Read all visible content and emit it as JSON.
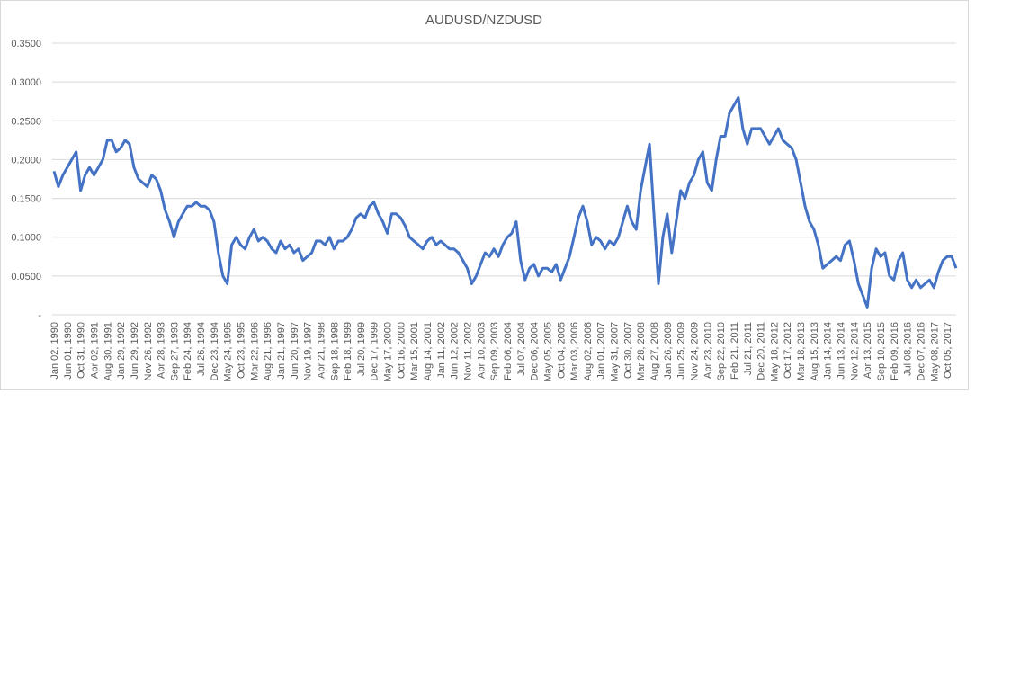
{
  "chart_data": {
    "type": "line",
    "title": "AUDUSD/NZDUSD",
    "categories": [
      "Jan 02, 1990",
      null,
      null,
      "Jun 01, 1990",
      null,
      null,
      "Oct 31, 1990",
      null,
      null,
      "Apr 02, 1991",
      null,
      null,
      "Aug 30, 1991",
      null,
      null,
      "Jan 29, 1992",
      null,
      null,
      "Jun 29, 1992",
      null,
      null,
      "Nov 26, 1992",
      null,
      null,
      "Apr 28, 1993",
      null,
      null,
      "Sep 27, 1993",
      null,
      null,
      "Feb 24, 1994",
      null,
      null,
      "Jul 26, 1994",
      null,
      null,
      "Dec 23, 1994",
      null,
      null,
      "May 24, 1995",
      null,
      null,
      "Oct 23, 1995",
      null,
      null,
      "Mar 22, 1996",
      null,
      null,
      "Aug 21, 1996",
      null,
      null,
      "Jan 21, 1997",
      null,
      null,
      "Jun 20, 1997",
      null,
      null,
      "Nov 19, 1997",
      null,
      null,
      "Apr 21, 1998",
      null,
      null,
      "Sep 18, 1998",
      null,
      null,
      "Feb 18, 1999",
      null,
      null,
      "Jul 20, 1999",
      null,
      null,
      "Dec 17, 1999",
      null,
      null,
      "May 17, 2000",
      null,
      null,
      "Oct 16, 2000",
      null,
      null,
      "Mar 15, 2001",
      null,
      null,
      "Aug 14, 2001",
      null,
      null,
      "Jan 11, 2002",
      null,
      null,
      "Jun 12, 2002",
      null,
      null,
      "Nov 11, 2002",
      null,
      null,
      "Apr 10, 2003",
      null,
      null,
      "Sep 09, 2003",
      null,
      null,
      "Feb 06, 2004",
      null,
      null,
      "Jul 07, 2004",
      null,
      null,
      "Dec 06, 2004",
      null,
      null,
      "May 05, 2005",
      null,
      null,
      "Oct 04, 2005",
      null,
      null,
      "Mar 03, 2006",
      null,
      null,
      "Aug 02, 2006",
      null,
      null,
      "Jan 01, 2007",
      null,
      null,
      "May 31, 2007",
      null,
      null,
      "Oct 30, 2007",
      null,
      null,
      "Mar 28, 2008",
      null,
      null,
      "Aug 27, 2008",
      null,
      null,
      "Jan 26, 2009",
      null,
      null,
      "Jun 25, 2009",
      null,
      null,
      "Nov 24, 2009",
      null,
      null,
      "Apr 23, 2010",
      null,
      null,
      "Sep 22, 2010",
      null,
      null,
      "Feb 21, 2011",
      null,
      null,
      "Jul 21, 2011",
      null,
      null,
      "Dec 20, 2011",
      null,
      null,
      "May 18, 2012",
      null,
      null,
      "Oct 17, 2012",
      null,
      null,
      "Mar 18, 2013",
      null,
      null,
      "Aug 15, 2013",
      null,
      null,
      "Jan 14, 2014",
      null,
      null,
      "Jun 13, 2014",
      null,
      null,
      "Nov 12, 2014",
      null,
      null,
      "Apr 13, 2015",
      null,
      null,
      "Sep 10, 2015",
      null,
      null,
      "Feb 09, 2016",
      null,
      null,
      "Jul 08, 2016",
      null,
      null,
      "Dec 07, 2016",
      null,
      null,
      "May 08, 2017",
      null,
      null,
      "Oct 05, 2017",
      null,
      null
    ],
    "series": [
      {
        "color": "#4472c4",
        "values": [
          0.185,
          0.165,
          0.18,
          0.19,
          0.2,
          0.21,
          0.16,
          0.18,
          0.19,
          0.18,
          0.19,
          0.2,
          0.225,
          0.225,
          0.21,
          0.215,
          0.225,
          0.22,
          0.19,
          0.175,
          0.17,
          0.165,
          0.18,
          0.175,
          0.16,
          0.135,
          0.12,
          0.1,
          0.12,
          0.13,
          0.14,
          0.14,
          0.145,
          0.14,
          0.14,
          0.135,
          0.12,
          0.08,
          0.05,
          0.04,
          0.09,
          0.1,
          0.09,
          0.085,
          0.1,
          0.11,
          0.095,
          0.1,
          0.095,
          0.085,
          0.08,
          0.095,
          0.085,
          0.09,
          0.08,
          0.085,
          0.07,
          0.075,
          0.08,
          0.095,
          0.095,
          0.09,
          0.1,
          0.085,
          0.095,
          0.095,
          0.1,
          0.11,
          0.125,
          0.13,
          0.125,
          0.14,
          0.145,
          0.13,
          0.12,
          0.105,
          0.13,
          0.13,
          0.125,
          0.115,
          0.1,
          0.095,
          0.09,
          0.085,
          0.095,
          0.1,
          0.09,
          0.095,
          0.09,
          0.085,
          0.085,
          0.08,
          0.07,
          0.06,
          0.04,
          0.05,
          0.065,
          0.08,
          0.075,
          0.085,
          0.075,
          0.09,
          0.1,
          0.105,
          0.12,
          0.07,
          0.045,
          0.06,
          0.065,
          0.05,
          0.06,
          0.06,
          0.055,
          0.065,
          0.045,
          0.06,
          0.075,
          0.1,
          0.125,
          0.14,
          0.12,
          0.09,
          0.1,
          0.095,
          0.085,
          0.095,
          0.09,
          0.1,
          0.12,
          0.14,
          0.12,
          0.11,
          0.16,
          0.19,
          0.22,
          0.13,
          0.04,
          0.1,
          0.13,
          0.08,
          0.12,
          0.16,
          0.15,
          0.17,
          0.18,
          0.2,
          0.21,
          0.17,
          0.16,
          0.2,
          0.23,
          0.23,
          0.26,
          0.27,
          0.28,
          0.24,
          0.22,
          0.24,
          0.24,
          0.24,
          0.23,
          0.22,
          0.23,
          0.24,
          0.225,
          0.22,
          0.215,
          0.2,
          0.17,
          0.14,
          0.12,
          0.11,
          0.09,
          0.06,
          0.065,
          0.07,
          0.075,
          0.07,
          0.09,
          0.095,
          0.07,
          0.04,
          0.025,
          0.01,
          0.06,
          0.085,
          0.075,
          0.08,
          0.05,
          0.045,
          0.07,
          0.08,
          0.045,
          0.035,
          0.045,
          0.035,
          0.04,
          0.045,
          0.035,
          0.055,
          0.07,
          0.075,
          0.075,
          0.06
        ]
      }
    ],
    "ylim": [
      0,
      0.35
    ],
    "yticks": [
      {
        "value": 0,
        "label": "-"
      },
      {
        "value": 0.05,
        "label": "0.0500"
      },
      {
        "value": 0.1,
        "label": "0.1000"
      },
      {
        "value": 0.15,
        "label": "0.1500"
      },
      {
        "value": 0.2,
        "label": "0.2000"
      },
      {
        "value": 0.25,
        "label": "0.2500"
      },
      {
        "value": 0.3,
        "label": "0.3000"
      },
      {
        "value": 0.35,
        "label": "0.3500"
      }
    ],
    "grid": true
  }
}
